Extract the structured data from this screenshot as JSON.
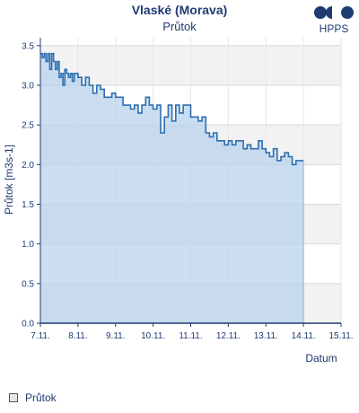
{
  "chart_data": {
    "type": "area",
    "title": "Vlaské (Morava)",
    "subtitle": "Průtok",
    "xlabel": "Datum",
    "ylabel": "Průtok [m3s-1]",
    "x_ticks": [
      "7.11.",
      "8.11.",
      "9.11.",
      "10.11.",
      "11.11.",
      "12.11.",
      "13.11.",
      "14.11.",
      "15.11."
    ],
    "y_ticks": [
      "0.0",
      "0.5",
      "1.0",
      "1.5",
      "2.0",
      "2.5",
      "3.0",
      "3.5"
    ],
    "xlim": [
      0,
      8
    ],
    "ylim": [
      0,
      3.6
    ],
    "grid": true,
    "legend_position": "bottom-left",
    "series": [
      {
        "name": "Průtok",
        "x": [
          0.0,
          0.05,
          0.1,
          0.15,
          0.2,
          0.25,
          0.3,
          0.35,
          0.4,
          0.45,
          0.5,
          0.55,
          0.6,
          0.65,
          0.7,
          0.75,
          0.8,
          0.85,
          0.9,
          1.0,
          1.1,
          1.2,
          1.3,
          1.4,
          1.5,
          1.6,
          1.7,
          1.8,
          1.9,
          2.0,
          2.1,
          2.2,
          2.3,
          2.4,
          2.5,
          2.6,
          2.7,
          2.8,
          2.9,
          3.0,
          3.1,
          3.2,
          3.3,
          3.4,
          3.5,
          3.6,
          3.7,
          3.8,
          3.9,
          4.0,
          4.1,
          4.2,
          4.3,
          4.4,
          4.5,
          4.6,
          4.7,
          4.8,
          4.9,
          5.0,
          5.1,
          5.2,
          5.3,
          5.4,
          5.5,
          5.6,
          5.7,
          5.8,
          5.9,
          6.0,
          6.1,
          6.2,
          6.3,
          6.4,
          6.5,
          6.6,
          6.7,
          6.8,
          6.9,
          7.0
        ],
        "values": [
          3.4,
          3.35,
          3.4,
          3.3,
          3.4,
          3.2,
          3.4,
          3.3,
          3.2,
          3.3,
          3.1,
          3.15,
          3.0,
          3.2,
          3.15,
          3.1,
          3.15,
          3.05,
          3.15,
          3.1,
          3.0,
          3.1,
          3.0,
          2.9,
          3.0,
          2.95,
          2.85,
          2.85,
          2.9,
          2.85,
          2.85,
          2.75,
          2.75,
          2.7,
          2.75,
          2.65,
          2.75,
          2.85,
          2.75,
          2.7,
          2.75,
          2.4,
          2.6,
          2.75,
          2.55,
          2.75,
          2.65,
          2.75,
          2.75,
          2.6,
          2.6,
          2.55,
          2.6,
          2.4,
          2.35,
          2.4,
          2.3,
          2.3,
          2.25,
          2.3,
          2.25,
          2.3,
          2.3,
          2.2,
          2.25,
          2.2,
          2.2,
          2.3,
          2.2,
          2.15,
          2.1,
          2.2,
          2.05,
          2.1,
          2.15,
          2.1,
          2.0,
          2.05,
          2.05,
          2.05
        ],
        "color": "#2e6fb0",
        "fill": "#b9d2ec"
      }
    ]
  },
  "logo": {
    "text": "HPPS"
  },
  "legend": {
    "label": "Průtok"
  }
}
